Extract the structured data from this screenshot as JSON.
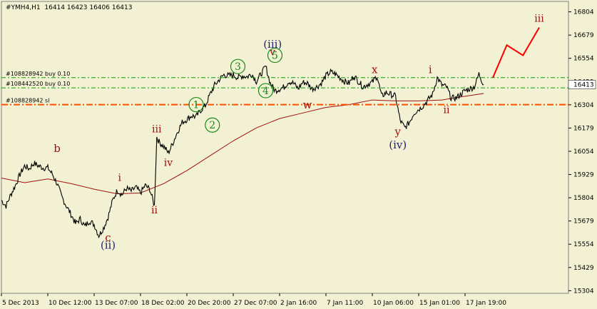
{
  "colors": {
    "background": "#f3f1d3",
    "candles": "#000000",
    "moving_average": "#a01010",
    "order_lines": "#00a000",
    "stop_line": "#ff5000",
    "wave_red": "#a01010",
    "wave_blue": "#23237a",
    "wave_green": "#178a17",
    "projection": "#ff0000",
    "price_tag_bg": "#ffffff"
  },
  "chart_data": {
    "type": "line",
    "title": "#YMH4,H1  16414 16423 16406 16413",
    "symbol": "#YMH4",
    "timeframe": "H1",
    "ohlc_readout": {
      "open": 16414,
      "high": 16423,
      "low": 16406,
      "close": 16413
    },
    "current_price": "16413",
    "ylim": [
      15290,
      16860
    ],
    "y_ticks": [
      "16804",
      "16679",
      "16554",
      "16429",
      "16304",
      "16179",
      "16054",
      "15929",
      "15804",
      "15679",
      "15554",
      "15429",
      "15304"
    ],
    "x_tick_labels": [
      "5 Dec 2013",
      "10 Dec 12:00",
      "13 Dec 07:00",
      "18 Dec 02:00",
      "20 Dec 20:00",
      "27 Dec 07:00",
      "2 Jan 16:00",
      "7 Jan 11:00",
      "10 Jan 06:00",
      "15 Jan 01:00",
      "17 Jan 19:00"
    ],
    "x_tick_index": [
      0,
      20,
      40,
      60,
      80,
      100,
      120,
      140,
      160,
      180,
      200
    ],
    "x_last_index": 208,
    "price_path": [
      [
        0,
        15790
      ],
      [
        2,
        15760
      ],
      [
        4,
        15820
      ],
      [
        6,
        15870
      ],
      [
        8,
        15930
      ],
      [
        10,
        15975
      ],
      [
        12,
        15960
      ],
      [
        14,
        15990
      ],
      [
        16,
        15975
      ],
      [
        18,
        15965
      ],
      [
        20,
        15965
      ],
      [
        22,
        15930
      ],
      [
        24,
        15880
      ],
      [
        26,
        15810
      ],
      [
        28,
        15760
      ],
      [
        30,
        15715
      ],
      [
        32,
        15665
      ],
      [
        34,
        15690
      ],
      [
        36,
        15650
      ],
      [
        38,
        15680
      ],
      [
        40,
        15660
      ],
      [
        42,
        15600
      ],
      [
        44,
        15640
      ],
      [
        46,
        15700
      ],
      [
        48,
        15790
      ],
      [
        50,
        15845
      ],
      [
        52,
        15820
      ],
      [
        54,
        15855
      ],
      [
        56,
        15840
      ],
      [
        58,
        15860
      ],
      [
        60,
        15830
      ],
      [
        62,
        15870
      ],
      [
        64,
        15850
      ],
      [
        66,
        15760
      ],
      [
        67,
        16130
      ],
      [
        68,
        16105
      ],
      [
        70,
        16080
      ],
      [
        72,
        16045
      ],
      [
        74,
        16100
      ],
      [
        76,
        16160
      ],
      [
        78,
        16210
      ],
      [
        80,
        16225
      ],
      [
        82,
        16245
      ],
      [
        84,
        16240
      ],
      [
        86,
        16275
      ],
      [
        88,
        16300
      ],
      [
        90,
        16360
      ],
      [
        92,
        16410
      ],
      [
        94,
        16440
      ],
      [
        96,
        16465
      ],
      [
        98,
        16460
      ],
      [
        100,
        16465
      ],
      [
        102,
        16450
      ],
      [
        104,
        16460
      ],
      [
        106,
        16455
      ],
      [
        108,
        16470
      ],
      [
        110,
        16430
      ],
      [
        112,
        16470
      ],
      [
        114,
        16510
      ],
      [
        116,
        16420
      ],
      [
        118,
        16380
      ],
      [
        120,
        16390
      ],
      [
        122,
        16400
      ],
      [
        124,
        16430
      ],
      [
        126,
        16420
      ],
      [
        128,
        16390
      ],
      [
        130,
        16425
      ],
      [
        132,
        16420
      ],
      [
        134,
        16390
      ],
      [
        136,
        16400
      ],
      [
        138,
        16420
      ],
      [
        140,
        16460
      ],
      [
        142,
        16480
      ],
      [
        144,
        16470
      ],
      [
        146,
        16450
      ],
      [
        148,
        16430
      ],
      [
        150,
        16420
      ],
      [
        152,
        16460
      ],
      [
        154,
        16430
      ],
      [
        156,
        16400
      ],
      [
        158,
        16415
      ],
      [
        160,
        16425
      ],
      [
        162,
        16460
      ],
      [
        164,
        16350
      ],
      [
        166,
        16370
      ],
      [
        168,
        16360
      ],
      [
        170,
        16350
      ],
      [
        172,
        16220
      ],
      [
        174,
        16180
      ],
      [
        176,
        16210
      ],
      [
        178,
        16260
      ],
      [
        180,
        16280
      ],
      [
        182,
        16300
      ],
      [
        184,
        16330
      ],
      [
        186,
        16360
      ],
      [
        188,
        16450
      ],
      [
        190,
        16410
      ],
      [
        192,
        16400
      ],
      [
        194,
        16340
      ],
      [
        196,
        16340
      ],
      [
        198,
        16360
      ],
      [
        200,
        16380
      ],
      [
        202,
        16390
      ],
      [
        204,
        16400
      ],
      [
        206,
        16470
      ],
      [
        208,
        16413
      ]
    ],
    "moving_average": [
      [
        0,
        15910
      ],
      [
        10,
        15885
      ],
      [
        20,
        15905
      ],
      [
        30,
        15880
      ],
      [
        40,
        15850
      ],
      [
        50,
        15825
      ],
      [
        60,
        15830
      ],
      [
        70,
        15880
      ],
      [
        80,
        15950
      ],
      [
        90,
        16030
      ],
      [
        100,
        16110
      ],
      [
        110,
        16180
      ],
      [
        120,
        16230
      ],
      [
        130,
        16260
      ],
      [
        140,
        16290
      ],
      [
        150,
        16305
      ],
      [
        160,
        16330
      ],
      [
        170,
        16325
      ],
      [
        180,
        16325
      ],
      [
        190,
        16330
      ],
      [
        200,
        16350
      ],
      [
        208,
        16365
      ]
    ],
    "order_lines": [
      {
        "label": "#108828942 buy 0.10",
        "price": 16450,
        "style": "buy"
      },
      {
        "label": "#108442520 buy 0.10",
        "price": 16395,
        "style": "buy"
      },
      {
        "label": "#108828942 sl",
        "price": 16305,
        "style": "sl"
      }
    ],
    "wave_labels": [
      {
        "text": "b",
        "x": 24,
        "price": 16050,
        "color": "wave_red",
        "size": 15
      },
      {
        "text": "c",
        "x": 46,
        "price": 15570,
        "color": "wave_red",
        "size": 15
      },
      {
        "text": "(ii)",
        "x": 46,
        "price": 15530,
        "color": "wave_blue",
        "size": 15
      },
      {
        "text": "i",
        "x": 51,
        "price": 15895,
        "color": "wave_red",
        "size": 14
      },
      {
        "text": "ii",
        "x": 66,
        "price": 15720,
        "color": "wave_red",
        "size": 14
      },
      {
        "text": "iii",
        "x": 67,
        "price": 16155,
        "color": "wave_red",
        "size": 14
      },
      {
        "text": "iv",
        "x": 72,
        "price": 15975,
        "color": "wave_red",
        "size": 14
      },
      {
        "text": "(iii)",
        "x": 117,
        "price": 16610,
        "color": "wave_blue",
        "size": 15
      },
      {
        "text": "v",
        "x": 117,
        "price": 16570,
        "color": "wave_red",
        "size": 14
      },
      {
        "text": "w",
        "x": 132,
        "price": 16285,
        "color": "wave_red",
        "size": 15
      },
      {
        "text": "x",
        "x": 161,
        "price": 16475,
        "color": "wave_red",
        "size": 15
      },
      {
        "text": "y",
        "x": 171,
        "price": 16140,
        "color": "wave_red",
        "size": 15
      },
      {
        "text": "(iv)",
        "x": 171,
        "price": 16070,
        "color": "wave_blue",
        "size": 15
      },
      {
        "text": "i",
        "x": 185,
        "price": 16475,
        "color": "wave_red",
        "size": 15
      },
      {
        "text": "ii",
        "x": 192,
        "price": 16260,
        "color": "wave_red",
        "size": 14
      },
      {
        "text": "iii",
        "x": 232,
        "price": 16750,
        "color": "wave_red",
        "size": 14
      }
    ],
    "wave_circles": [
      {
        "text": "1",
        "x": 84,
        "price": 16305
      },
      {
        "text": "2",
        "x": 91,
        "price": 16195
      },
      {
        "text": "3",
        "x": 102,
        "price": 16510
      },
      {
        "text": "4",
        "x": 114,
        "price": 16380
      },
      {
        "text": "5",
        "x": 118,
        "price": 16570
      }
    ],
    "projection": [
      [
        212,
        16450
      ],
      [
        218,
        16625
      ],
      [
        225,
        16570
      ],
      [
        232,
        16720
      ]
    ]
  }
}
